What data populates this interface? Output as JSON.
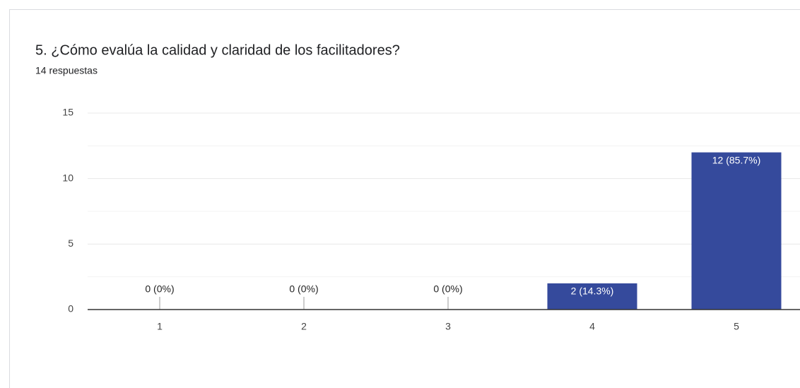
{
  "chart_data": {
    "type": "bar",
    "title": "5. ¿Cómo evalúa la calidad y claridad de los facilitadores?",
    "subtitle": "14 respuestas",
    "categories": [
      "1",
      "2",
      "3",
      "4",
      "5"
    ],
    "values": [
      0,
      0,
      0,
      2,
      12
    ],
    "value_labels": [
      "0 (0%)",
      "0 (0%)",
      "0 (0%)",
      "2 (14.3%)",
      "12 (85.7%)"
    ],
    "color": "#354a9c",
    "ylim": [
      0,
      15
    ],
    "yticks": [
      0,
      5,
      10,
      15
    ],
    "minor_yticks": [
      2.5,
      7.5,
      12.5
    ],
    "grid": true
  }
}
